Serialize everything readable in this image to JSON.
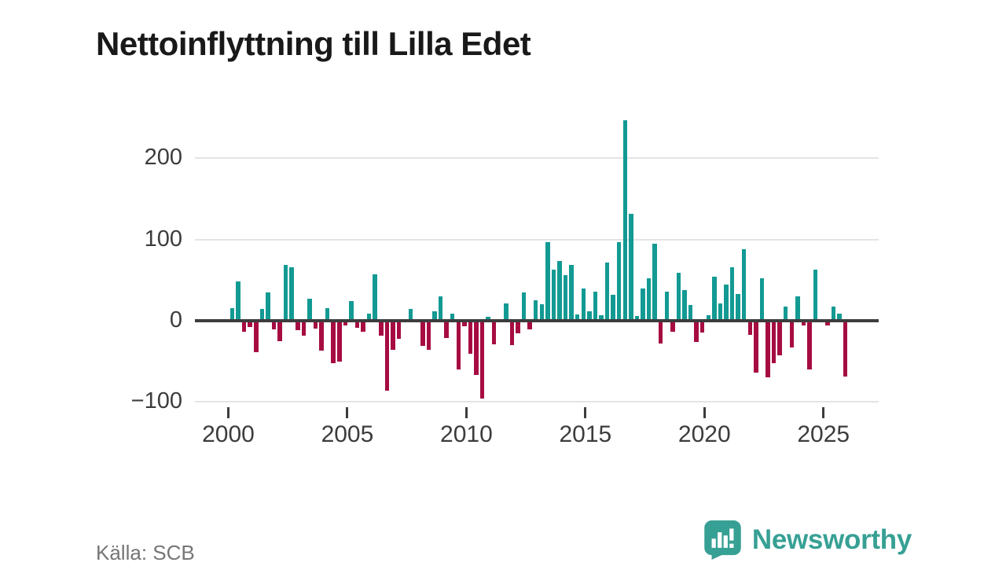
{
  "title": "Nettoinflyttning till Lilla Edet",
  "source_label": "Källa: SCB",
  "logo": {
    "brand": "Newsworthy"
  },
  "colors": {
    "positive_bar": "#129a93",
    "negative_bar": "#a60c42",
    "logo_teal": "#37a094",
    "grid": "#e4e4e4",
    "axis": "#3d3d3d"
  },
  "chart_data": {
    "type": "bar",
    "title": "Nettoinflyttning till Lilla Edet",
    "frequency": "quarterly",
    "start_period": "2000-Q1",
    "end_period": "2025-Q4",
    "xlabel": "",
    "ylabel": "",
    "ylim": [
      -120,
      260
    ],
    "grid": "horizontal",
    "y_ticks": [
      200,
      100,
      0,
      -100
    ],
    "y_tick_labels": [
      "200",
      "100",
      "0",
      "−100"
    ],
    "x_ticks": [
      2000,
      2005,
      2010,
      2015,
      2020,
      2025
    ],
    "x_tick_labels": [
      "2000",
      "2005",
      "2010",
      "2015",
      "2020",
      "2025"
    ],
    "series": [
      {
        "name": "Nettoinflyttning",
        "values": [
          14,
          46,
          -12,
          -6,
          -37,
          13,
          33,
          -9,
          -23,
          67,
          64,
          -10,
          -16,
          25,
          -8,
          -35,
          14,
          -50,
          -48,
          -4,
          22,
          -7,
          -12,
          7,
          55,
          -16,
          -84,
          -34,
          -20,
          0,
          13,
          0,
          -29,
          -34,
          10,
          28,
          -19,
          7,
          -58,
          -5,
          -39,
          -65,
          -94,
          3,
          -27,
          0,
          19,
          -28,
          -14,
          33,
          -9,
          23,
          18,
          95,
          61,
          72,
          54,
          67,
          6,
          38,
          10,
          34,
          5,
          70,
          30,
          95,
          245,
          130,
          4,
          38,
          50,
          93,
          -26,
          34,
          -12,
          57,
          36,
          17,
          -24,
          -13,
          5,
          52,
          19,
          43,
          64,
          31,
          86,
          -15,
          -62,
          50,
          -68,
          -50,
          -41,
          15,
          -31,
          28,
          -4,
          -58,
          61,
          0,
          -4,
          15,
          7,
          -67
        ]
      }
    ]
  }
}
